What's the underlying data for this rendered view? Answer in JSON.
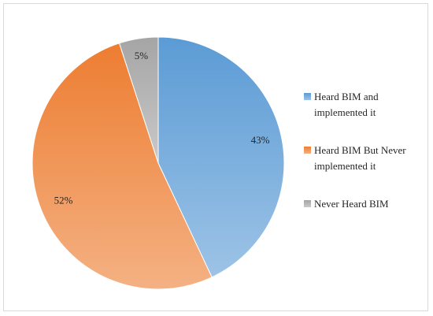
{
  "chart_data": {
    "type": "pie",
    "title": "",
    "categories": [
      "Heard BIM and implemented it",
      "Heard BIM But Never implemented it",
      "Never Heard BIM"
    ],
    "values": [
      43,
      52,
      5
    ],
    "labels": [
      "43%",
      "52%",
      "5%"
    ],
    "colors": [
      "#5b9bd5",
      "#ed7d31",
      "#a5a5a5"
    ],
    "legend": "right"
  },
  "legend": {
    "items": [
      {
        "label": "Heard BIM and implemented it",
        "color": "#5b9bd5"
      },
      {
        "label": "Heard BIM But Never implemented it",
        "color": "#ed7d31"
      },
      {
        "label": "Never Heard BIM",
        "color": "#a5a5a5"
      }
    ]
  }
}
